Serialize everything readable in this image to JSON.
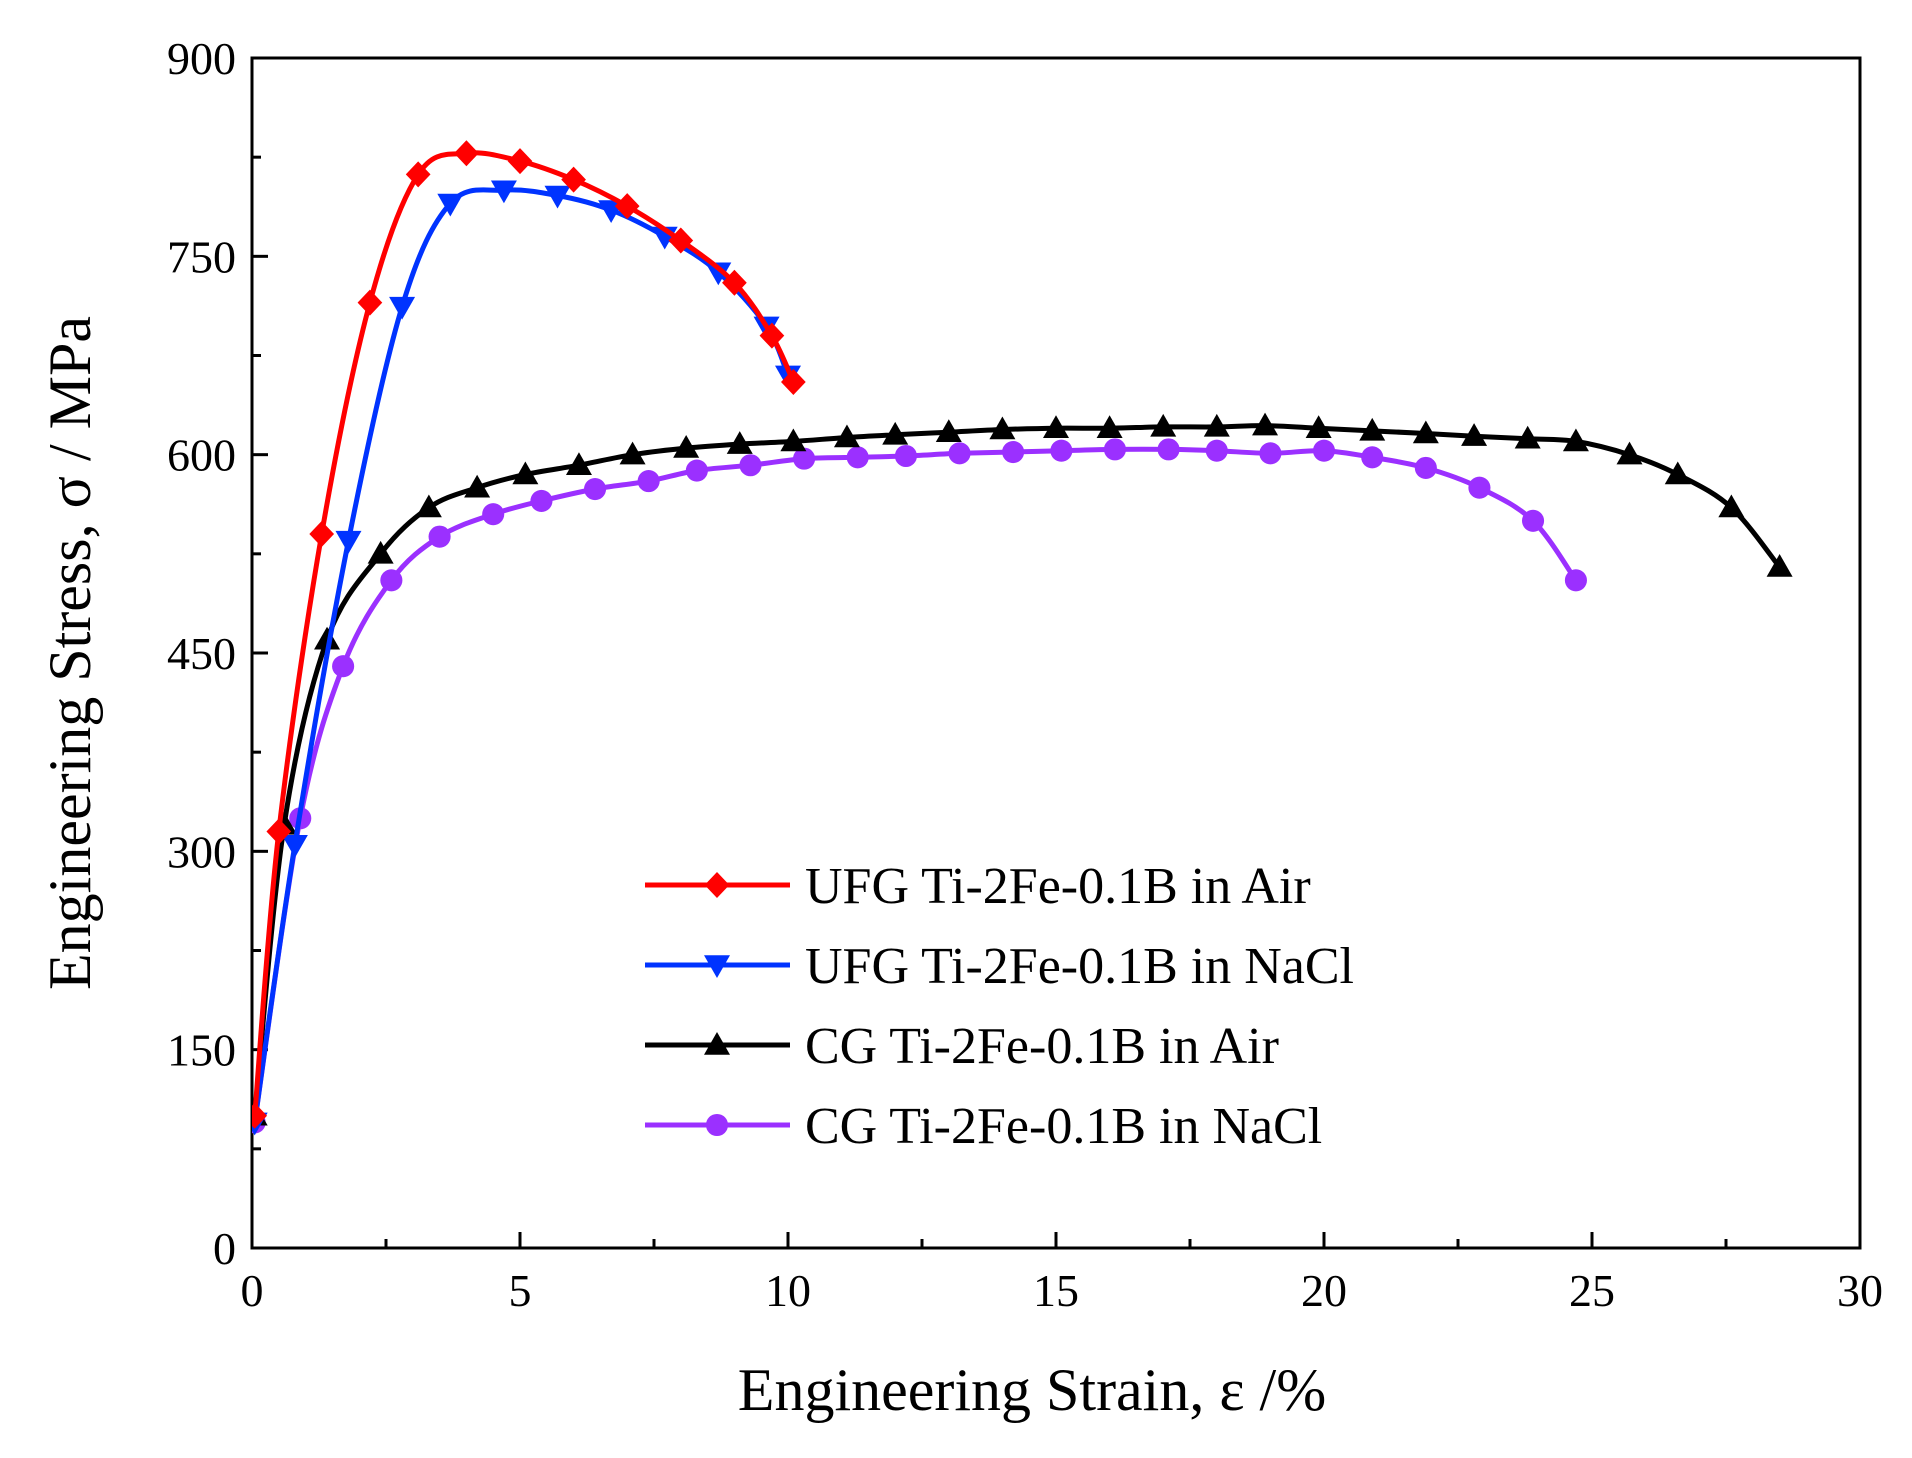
{
  "chart_data": {
    "type": "line",
    "title": "",
    "xlabel": "Engineering Strain, ε /%",
    "ylabel": "Engineering Stress, σ / MPa",
    "xlim": [
      0,
      30
    ],
    "ylim": [
      0,
      900
    ],
    "xticks": [
      0,
      5,
      10,
      15,
      20,
      25,
      30
    ],
    "yticks": [
      0,
      150,
      300,
      450,
      600,
      750,
      900
    ],
    "legend_position": "lower-center",
    "series": [
      {
        "name": "UFG Ti-2Fe-0.1B in Air",
        "color": "#ff0000",
        "marker": "diamond",
        "points": [
          [
            0.05,
            100
          ],
          [
            0.5,
            315
          ],
          [
            1.3,
            540
          ],
          [
            2.2,
            715
          ],
          [
            3.1,
            812
          ],
          [
            4.0,
            828
          ],
          [
            5.0,
            822
          ],
          [
            6.0,
            808
          ],
          [
            7.0,
            788
          ],
          [
            8.0,
            762
          ],
          [
            9.0,
            730
          ],
          [
            9.7,
            690
          ],
          [
            10.1,
            655
          ]
        ]
      },
      {
        "name": "UFG Ti-2Fe-0.1B in NaCl",
        "color": "#0033ff",
        "marker": "triangle-down",
        "points": [
          [
            0.05,
            95
          ],
          [
            0.8,
            305
          ],
          [
            1.8,
            535
          ],
          [
            2.8,
            712
          ],
          [
            3.7,
            790
          ],
          [
            4.7,
            800
          ],
          [
            5.7,
            796
          ],
          [
            6.7,
            785
          ],
          [
            7.7,
            765
          ],
          [
            8.7,
            738
          ],
          [
            9.6,
            697
          ],
          [
            10.0,
            660
          ]
        ]
      },
      {
        "name": "CG Ti-2Fe-0.1B in Air",
        "color": "#000000",
        "marker": "triangle-up",
        "points": [
          [
            0.05,
            100
          ],
          [
            0.6,
            320
          ],
          [
            1.4,
            460
          ],
          [
            2.4,
            525
          ],
          [
            3.3,
            560
          ],
          [
            4.2,
            575
          ],
          [
            5.1,
            585
          ],
          [
            6.1,
            592
          ],
          [
            7.1,
            600
          ],
          [
            8.1,
            605
          ],
          [
            9.1,
            608
          ],
          [
            10.1,
            610
          ],
          [
            11.1,
            613
          ],
          [
            12.0,
            615
          ],
          [
            13.0,
            617
          ],
          [
            14.0,
            619
          ],
          [
            15.0,
            620
          ],
          [
            16.0,
            620
          ],
          [
            17.0,
            621
          ],
          [
            18.0,
            621
          ],
          [
            18.9,
            622
          ],
          [
            19.9,
            620
          ],
          [
            20.9,
            618
          ],
          [
            21.9,
            616
          ],
          [
            22.8,
            614
          ],
          [
            23.8,
            612
          ],
          [
            24.7,
            610
          ],
          [
            25.7,
            600
          ],
          [
            26.6,
            585
          ],
          [
            27.6,
            560
          ],
          [
            28.5,
            515
          ]
        ]
      },
      {
        "name": "CG Ti-2Fe-0.1B in NaCl",
        "color": "#9b30ff",
        "marker": "circle",
        "points": [
          [
            0.05,
            95
          ],
          [
            0.9,
            325
          ],
          [
            1.7,
            440
          ],
          [
            2.6,
            505
          ],
          [
            3.5,
            538
          ],
          [
            4.5,
            555
          ],
          [
            5.4,
            565
          ],
          [
            6.4,
            574
          ],
          [
            7.4,
            580
          ],
          [
            8.3,
            588
          ],
          [
            9.3,
            592
          ],
          [
            10.3,
            597
          ],
          [
            11.3,
            598
          ],
          [
            12.2,
            599
          ],
          [
            13.2,
            601
          ],
          [
            14.2,
            602
          ],
          [
            15.1,
            603
          ],
          [
            16.1,
            604
          ],
          [
            17.1,
            604
          ],
          [
            18.0,
            603
          ],
          [
            19.0,
            601
          ],
          [
            20.0,
            603
          ],
          [
            20.9,
            598
          ],
          [
            21.9,
            590
          ],
          [
            22.9,
            575
          ],
          [
            23.9,
            550
          ],
          [
            24.7,
            505
          ]
        ]
      }
    ]
  }
}
